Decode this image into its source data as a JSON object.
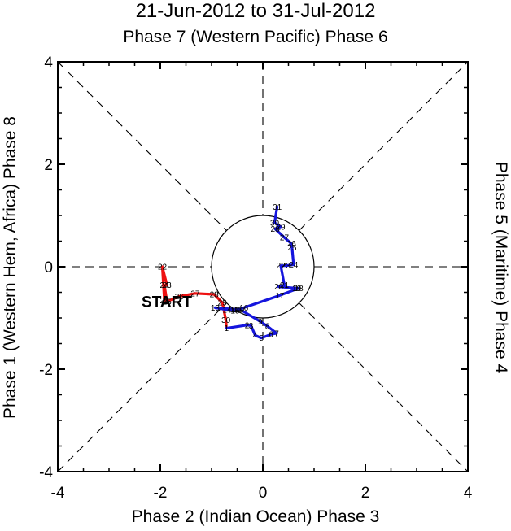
{
  "chart_data": {
    "type": "line",
    "title": "21-Jun-2012 to 31-Jul-2012",
    "top_label": "Phase 7 (Western Pacific) Phase 6",
    "xlabel": "Phase 2 (Indian Ocean) Phase 3",
    "ylabel_left": "Phase 1 (Western Hem, Africa) Phase 8",
    "ylabel_right": "Phase 5 (Maritime) Phase 4",
    "xlim": [
      -4,
      4
    ],
    "ylim": [
      -4,
      4
    ],
    "xticks": [
      "-4",
      "-2",
      "0",
      "2",
      "4"
    ],
    "yticks": [
      "-4",
      "-2",
      "0",
      "2",
      "4"
    ],
    "unit_circle_radius": 1,
    "start_label": "START",
    "colors": {
      "june": "#ee1111",
      "july": "#1515dd",
      "axis": "#000000",
      "circle": "#000000"
    },
    "series": [
      {
        "name": "June",
        "color": "#ee1111",
        "points": [
          {
            "day": "21",
            "x": -1.92,
            "y": -0.66
          },
          {
            "day": "22",
            "x": -1.96,
            "y": 0.0
          },
          {
            "day": "23",
            "x": -1.87,
            "y": -0.36
          },
          {
            "day": "24",
            "x": -1.92,
            "y": -0.36
          },
          {
            "day": "25",
            "x": -1.87,
            "y": -0.68
          },
          {
            "day": "26",
            "x": -1.63,
            "y": -0.58
          },
          {
            "day": "27",
            "x": -1.32,
            "y": -0.52
          },
          {
            "day": "28",
            "x": -0.95,
            "y": -0.54
          },
          {
            "day": "29",
            "x": -0.79,
            "y": -0.7
          },
          {
            "day": "30",
            "x": -0.72,
            "y": -1.04
          }
        ]
      },
      {
        "name": "July",
        "color": "#1515dd",
        "points": [
          {
            "day": "1",
            "x": -0.71,
            "y": -1.2
          },
          {
            "day": "2",
            "x": -0.31,
            "y": -1.14
          },
          {
            "day": "3",
            "x": -0.23,
            "y": -1.15
          },
          {
            "day": "4",
            "x": -0.15,
            "y": -1.34
          },
          {
            "day": "5",
            "x": -0.03,
            "y": -1.39
          },
          {
            "day": "6",
            "x": 0.16,
            "y": -1.32
          },
          {
            "day": "7",
            "x": 0.27,
            "y": -1.3
          },
          {
            "day": "8",
            "x": 0.09,
            "y": -1.16
          },
          {
            "day": "9",
            "x": -0.05,
            "y": -1.07
          },
          {
            "day": "10",
            "x": -0.45,
            "y": -0.83
          },
          {
            "day": "11",
            "x": -0.5,
            "y": -0.83
          },
          {
            "day": "12",
            "x": -0.55,
            "y": -0.83
          },
          {
            "day": "13",
            "x": -0.93,
            "y": -0.8
          },
          {
            "day": "14",
            "x": -0.7,
            "y": -0.84
          },
          {
            "day": "15",
            "x": -0.54,
            "y": -0.86
          },
          {
            "day": "16",
            "x": -0.37,
            "y": -0.8
          },
          {
            "day": "17",
            "x": 0.33,
            "y": -0.56
          },
          {
            "day": "18",
            "x": 0.7,
            "y": -0.42
          },
          {
            "day": "19",
            "x": 0.66,
            "y": -0.42
          },
          {
            "day": "20",
            "x": 0.31,
            "y": -0.39
          },
          {
            "day": "21",
            "x": 0.42,
            "y": -0.36
          },
          {
            "day": "22",
            "x": 0.35,
            "y": 0.02
          },
          {
            "day": "23",
            "x": 0.45,
            "y": 0.02
          },
          {
            "day": "24",
            "x": 0.6,
            "y": 0.04
          },
          {
            "day": "25",
            "x": 0.57,
            "y": 0.37
          },
          {
            "day": "26",
            "x": 0.56,
            "y": 0.45
          },
          {
            "day": "27",
            "x": 0.42,
            "y": 0.57
          },
          {
            "day": "28",
            "x": 0.24,
            "y": 0.74
          },
          {
            "day": "29",
            "x": 0.35,
            "y": 0.78
          },
          {
            "day": "30",
            "x": 0.23,
            "y": 0.86
          },
          {
            "day": "31",
            "x": 0.28,
            "y": 1.17
          }
        ]
      }
    ]
  }
}
